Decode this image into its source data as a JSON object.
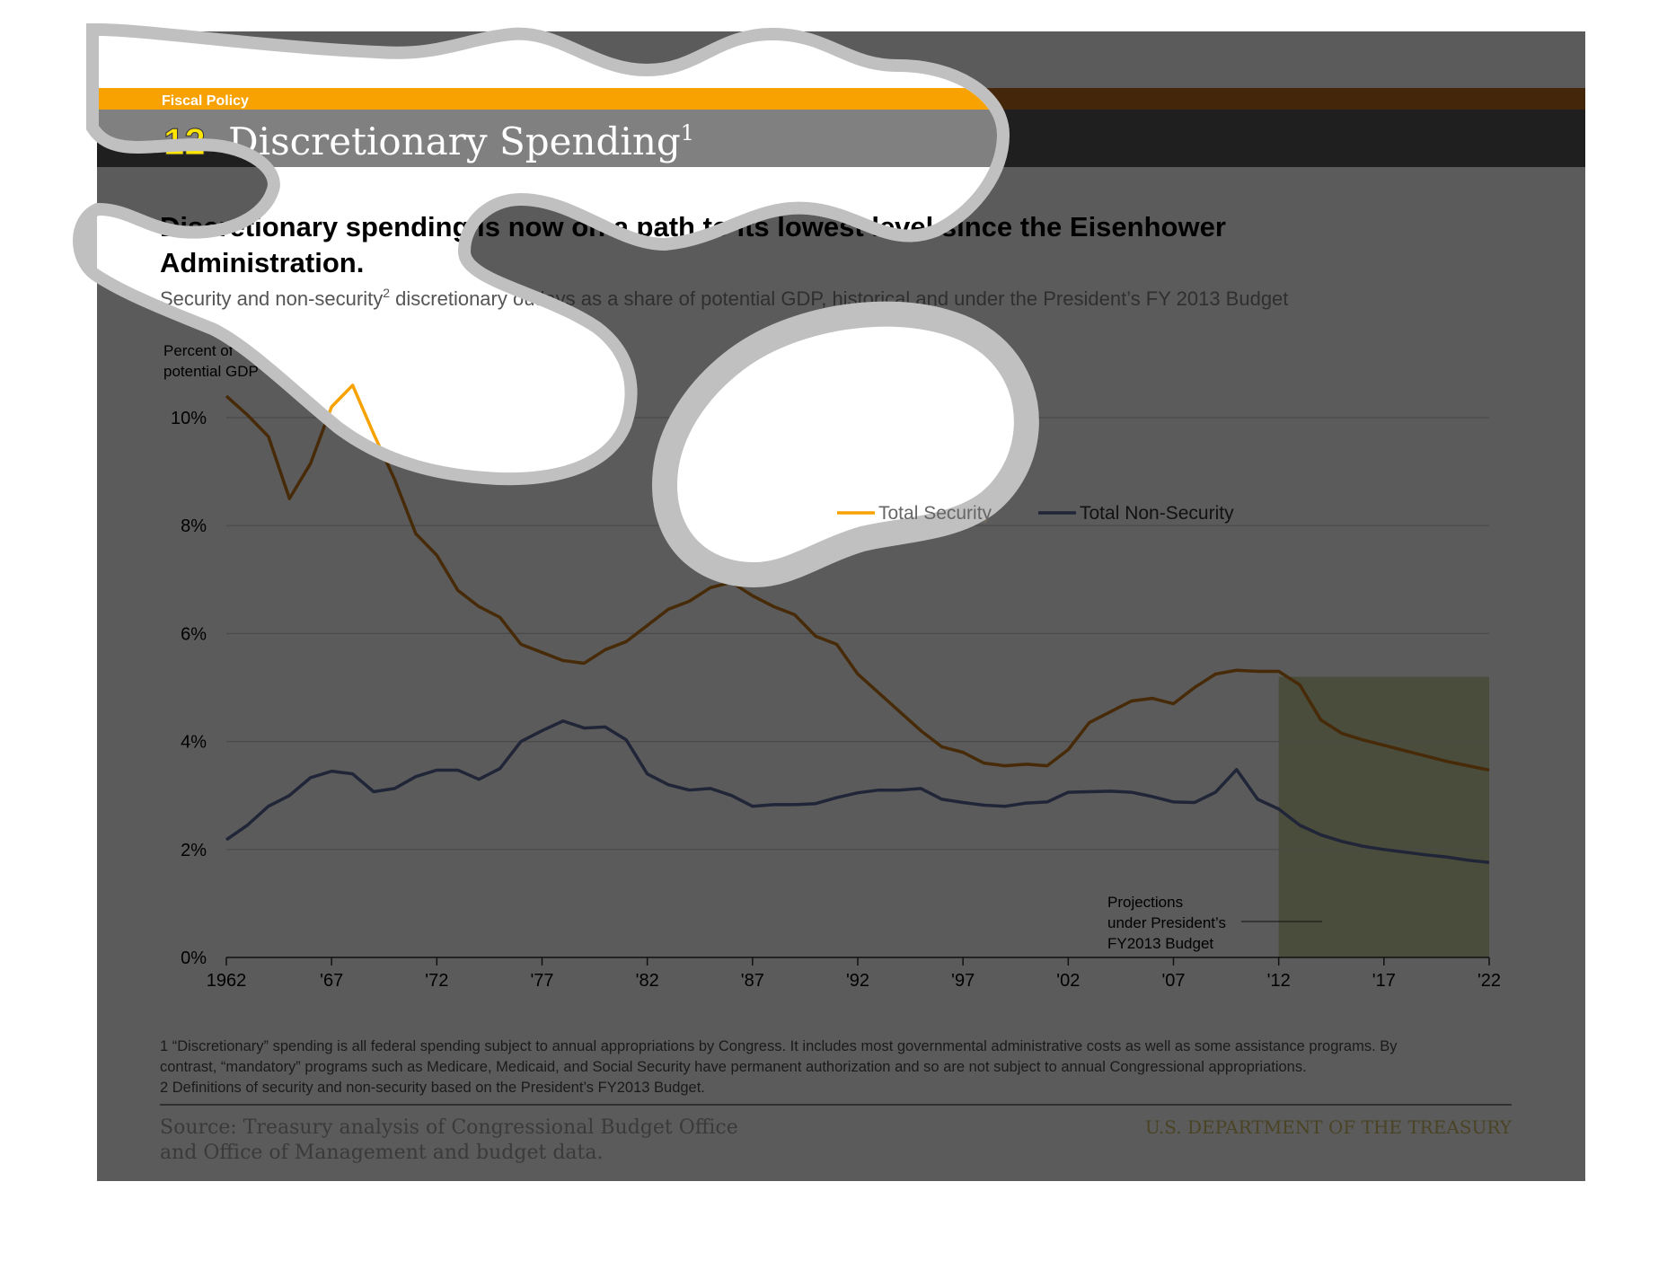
{
  "header": {
    "section": "Fiscal Policy",
    "number": "12",
    "title": "Discretionary Spending",
    "title_sup": "1"
  },
  "headline": {
    "line1": "Discretionary spending is now on a path to its lowest level since the Eisenhower",
    "line2": "Administration."
  },
  "subtitle": {
    "pre": "Security and non-security",
    "sup": "2",
    "post": " discretionary outlays as a share of potential GDP, historical and under the President’s FY 2013 Budget"
  },
  "colors": {
    "page_bg": "#ffffff",
    "slide_bg": "#5b5b5b",
    "orange_band": "#f7a200",
    "orange_band_dark": "#44270a",
    "title_band": "#808080",
    "title_band_dark": "#1f1f1f",
    "number_yellow": "#ffe600",
    "security_line": "#472a08",
    "security_line_bright": "#f7a200",
    "nonsecurity_line": "#202538",
    "projection_fill": "#4a4c3c",
    "cloud_fill": "#ffffff",
    "cloud_border": "#c0c0c0",
    "treasury_text": "#4a4324"
  },
  "chart_data": {
    "type": "line",
    "title": "",
    "ylabel": "Percent of potential GDP",
    "xlabel": "",
    "ylim": [
      0,
      10
    ],
    "xlim": [
      1962,
      2022
    ],
    "y_ticks": [
      "0%",
      "2%",
      "4%",
      "6%",
      "8%",
      "10%"
    ],
    "x_tick_labels": [
      "1962",
      "'67",
      "'72",
      "'77",
      "'82",
      "'87",
      "'92",
      "'97",
      "'02",
      "'07",
      "'12",
      "'17",
      "'22"
    ],
    "grid": true,
    "legend_position": "top-right",
    "x": [
      1962,
      1963,
      1964,
      1965,
      1966,
      1967,
      1968,
      1969,
      1970,
      1971,
      1972,
      1973,
      1974,
      1975,
      1976,
      1977,
      1978,
      1979,
      1980,
      1981,
      1982,
      1983,
      1984,
      1985,
      1986,
      1987,
      1988,
      1989,
      1990,
      1991,
      1992,
      1993,
      1994,
      1995,
      1996,
      1997,
      1998,
      1999,
      2000,
      2001,
      2002,
      2003,
      2004,
      2005,
      2006,
      2007,
      2008,
      2009,
      2010,
      2011,
      2012,
      2013,
      2014,
      2015,
      2016,
      2017,
      2018,
      2019,
      2020,
      2021,
      2022
    ],
    "series": [
      {
        "name": "Total Security",
        "values": [
          10.4,
          10.05,
          9.65,
          8.5,
          9.15,
          10.2,
          10.6,
          9.7,
          8.85,
          7.85,
          7.45,
          6.8,
          6.5,
          6.3,
          5.8,
          5.65,
          5.5,
          5.45,
          5.7,
          5.85,
          6.15,
          6.45,
          6.6,
          6.85,
          6.95,
          6.7,
          6.5,
          6.35,
          5.95,
          5.8,
          5.25,
          4.9,
          4.55,
          4.2,
          3.9,
          3.8,
          3.6,
          3.55,
          3.58,
          3.55,
          3.85,
          4.35,
          4.55,
          4.75,
          4.8,
          4.7,
          5.0,
          5.25,
          5.32,
          5.3,
          5.3,
          5.05,
          4.4,
          4.15,
          4.03,
          3.93,
          3.83,
          3.73,
          3.63,
          3.55,
          3.47
        ]
      },
      {
        "name": "Total Non-Security",
        "values": [
          2.18,
          2.45,
          2.8,
          3.0,
          3.33,
          3.45,
          3.4,
          3.07,
          3.13,
          3.35,
          3.47,
          3.47,
          3.3,
          3.5,
          4.0,
          4.2,
          4.38,
          4.25,
          4.27,
          4.03,
          3.4,
          3.2,
          3.1,
          3.13,
          3.0,
          2.8,
          2.83,
          2.83,
          2.85,
          2.96,
          3.05,
          3.1,
          3.1,
          3.13,
          2.93,
          2.87,
          2.82,
          2.8,
          2.86,
          2.88,
          3.06,
          3.07,
          3.08,
          3.06,
          2.98,
          2.88,
          2.87,
          3.06,
          3.48,
          2.93,
          2.75,
          2.45,
          2.27,
          2.15,
          2.06,
          2.0,
          1.95,
          1.9,
          1.86,
          1.8,
          1.76
        ]
      }
    ],
    "projection_start": 2012,
    "projection_end": 2022,
    "annotation": {
      "line1": "Projections",
      "line2": "under President’s",
      "line3": "FY2013 Budget"
    },
    "ylabel_line1": "Percent of",
    "ylabel_line2": "potential GDP"
  },
  "footnotes": {
    "line1": "1 “Discretionary” spending is all federal spending subject to annual appropriations by Congress. It includes most governmental administrative costs as well as some assistance programs. By",
    "line2": "contrast, “mandatory” programs such as Medicare, Medicaid, and Social Security have permanent authorization and so are not subject to annual Congressional appropriations.",
    "line3": "2 Definitions of security and non-security based on the President’s FY2013 Budget."
  },
  "source": {
    "line1": "Source: Treasury analysis of Congressional Budget Office",
    "line2": "and Office of Management and budget data."
  },
  "department": "U.S. DEPARTMENT OF THE TREASURY"
}
